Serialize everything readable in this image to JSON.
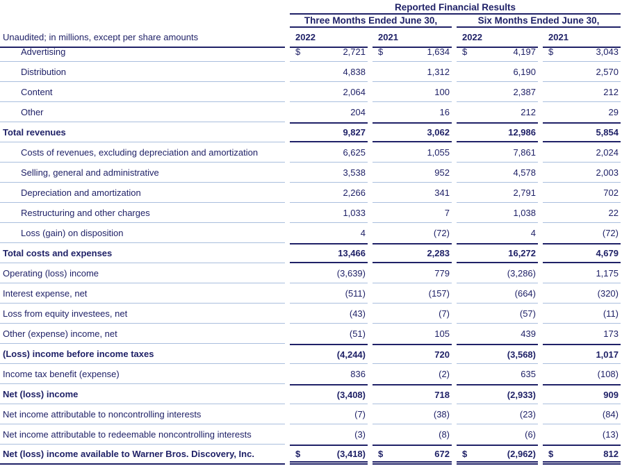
{
  "table": {
    "title": "Reported Financial Results",
    "unaudited_label": "Unaudited; in millions, except per share amounts",
    "currency_symbol": "$",
    "col_groups": [
      {
        "label": "Three Months Ended June 30,"
      },
      {
        "label": "Six Months Ended June 30,"
      }
    ],
    "year_headers": [
      "2022",
      "2021",
      "2022",
      "2021"
    ],
    "colors": {
      "navy": "#1f2167",
      "accent_blue": "#2e74c4",
      "light_rule": "#a9bedd",
      "background": "#ffffff"
    },
    "rows": [
      {
        "label": "Advertising",
        "indent": true,
        "bold": false,
        "dollar": true,
        "values": [
          "2,721",
          "1,634",
          "4,197",
          "3,043"
        ],
        "label_bottom": "light",
        "num_top": "none",
        "num_bottom": "light"
      },
      {
        "label": "Distribution",
        "indent": true,
        "bold": false,
        "dollar": false,
        "values": [
          "4,838",
          "1,312",
          "6,190",
          "2,570"
        ],
        "label_bottom": "light",
        "num_top": "none",
        "num_bottom": "light"
      },
      {
        "label": "Content",
        "indent": true,
        "bold": false,
        "dollar": false,
        "values": [
          "2,064",
          "100",
          "2,387",
          "212"
        ],
        "label_bottom": "light",
        "num_top": "none",
        "num_bottom": "light"
      },
      {
        "label": "Other",
        "indent": true,
        "bold": false,
        "dollar": false,
        "values": [
          "204",
          "16",
          "212",
          "29"
        ],
        "label_bottom": "light",
        "num_top": "none",
        "num_bottom": "none"
      },
      {
        "label": "Total revenues",
        "indent": false,
        "bold": true,
        "dollar": false,
        "values": [
          "9,827",
          "3,062",
          "12,986",
          "5,854"
        ],
        "label_bottom": "light",
        "num_top": "navy",
        "num_bottom": "navy"
      },
      {
        "label": "Costs of revenues, excluding depreciation and amortization",
        "indent": true,
        "bold": false,
        "dollar": false,
        "values": [
          "6,625",
          "1,055",
          "7,861",
          "2,024"
        ],
        "label_bottom": "light",
        "num_top": "none",
        "num_bottom": "light"
      },
      {
        "label": "Selling, general and administrative",
        "indent": true,
        "bold": false,
        "dollar": false,
        "values": [
          "3,538",
          "952",
          "4,578",
          "2,003"
        ],
        "label_bottom": "light",
        "num_top": "none",
        "num_bottom": "light"
      },
      {
        "label": "Depreciation and amortization",
        "indent": true,
        "bold": false,
        "dollar": false,
        "values": [
          "2,266",
          "341",
          "2,791",
          "702"
        ],
        "label_bottom": "light",
        "num_top": "none",
        "num_bottom": "light"
      },
      {
        "label": "Restructuring and other charges",
        "indent": true,
        "bold": false,
        "dollar": false,
        "values": [
          "1,033",
          "7",
          "1,038",
          "22"
        ],
        "label_bottom": "light",
        "num_top": "none",
        "num_bottom": "light"
      },
      {
        "label": "Loss (gain) on disposition",
        "indent": true,
        "bold": false,
        "dollar": false,
        "values": [
          "4",
          "(72)",
          "4",
          "(72)"
        ],
        "label_bottom": "light",
        "num_top": "none",
        "num_bottom": "none"
      },
      {
        "label": "Total costs and expenses",
        "indent": false,
        "bold": true,
        "dollar": false,
        "values": [
          "13,466",
          "2,283",
          "16,272",
          "4,679"
        ],
        "label_bottom": "light",
        "num_top": "navy",
        "num_bottom": "navy"
      },
      {
        "label": "Operating (loss) income",
        "indent": false,
        "bold": false,
        "dollar": false,
        "values": [
          "(3,639)",
          "779",
          "(3,286)",
          "1,175"
        ],
        "label_bottom": "light",
        "num_top": "none",
        "num_bottom": "light"
      },
      {
        "label": "Interest expense, net",
        "indent": false,
        "bold": false,
        "dollar": false,
        "values": [
          "(511)",
          "(157)",
          "(664)",
          "(320)"
        ],
        "label_bottom": "light",
        "num_top": "none",
        "num_bottom": "light"
      },
      {
        "label": "Loss from equity investees, net",
        "indent": false,
        "bold": false,
        "dollar": false,
        "values": [
          "(43)",
          "(7)",
          "(57)",
          "(11)"
        ],
        "label_bottom": "light",
        "num_top": "none",
        "num_bottom": "light"
      },
      {
        "label": "Other (expense) income, net",
        "indent": false,
        "bold": false,
        "dollar": false,
        "values": [
          "(51)",
          "105",
          "439",
          "173"
        ],
        "label_bottom": "light",
        "num_top": "none",
        "num_bottom": "none"
      },
      {
        "label": "(Loss) income before income taxes",
        "indent": false,
        "bold": true,
        "dollar": false,
        "values": [
          "(4,244)",
          "720",
          "(3,568)",
          "1,017"
        ],
        "label_bottom": "light",
        "num_top": "navy",
        "num_bottom": "light"
      },
      {
        "label": "Income tax benefit (expense)",
        "indent": false,
        "bold": false,
        "dollar": false,
        "values": [
          "836",
          "(2)",
          "635",
          "(108)"
        ],
        "label_bottom": "light",
        "num_top": "none",
        "num_bottom": "none"
      },
      {
        "label": "Net (loss) income",
        "indent": false,
        "bold": true,
        "dollar": false,
        "values": [
          "(3,408)",
          "718",
          "(2,933)",
          "909"
        ],
        "label_bottom": "light",
        "num_top": "navy",
        "num_bottom": "light"
      },
      {
        "label": "Net income attributable to noncontrolling interests",
        "indent": false,
        "bold": false,
        "dollar": false,
        "values": [
          "(7)",
          "(38)",
          "(23)",
          "(84)"
        ],
        "label_bottom": "light",
        "num_top": "none",
        "num_bottom": "light"
      },
      {
        "label": "Net income attributable to redeemable noncontrolling interests",
        "indent": false,
        "bold": false,
        "dollar": false,
        "values": [
          "(3)",
          "(8)",
          "(6)",
          "(13)"
        ],
        "label_bottom": "light",
        "num_top": "none",
        "num_bottom": "none"
      },
      {
        "label": "Net (loss) income available to Warner Bros. Discovery, Inc.",
        "indent": false,
        "bold": true,
        "dollar": true,
        "values": [
          "(3,418)",
          "672",
          "(2,962)",
          "812"
        ],
        "label_bottom": "navy",
        "num_top": "navy",
        "num_bottom": "double"
      }
    ]
  }
}
